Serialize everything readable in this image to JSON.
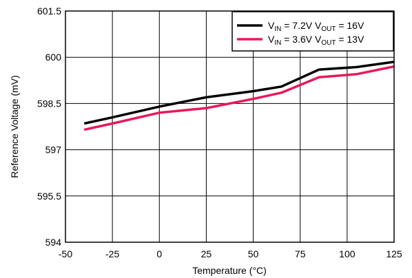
{
  "chart_data": {
    "type": "line",
    "title": "",
    "xlabel": "Temperature (°C)",
    "ylabel": "Reference Voltage (mV)",
    "xlim": [
      -50,
      125
    ],
    "ylim": [
      594,
      601.5
    ],
    "xticks": [
      "-50",
      "-25",
      "0",
      "25",
      "50",
      "75",
      "100",
      "125"
    ],
    "xtick_values": [
      -50,
      -25,
      0,
      25,
      50,
      75,
      100,
      125
    ],
    "yticks": [
      "594",
      "595.5",
      "597",
      "598.5",
      "600",
      "601.5"
    ],
    "ytick_values": [
      594,
      595.5,
      597,
      598.5,
      600,
      601.5
    ],
    "grid": true,
    "legend_position": "top-right",
    "series": [
      {
        "name": "VIN = 7.2V VOUT = 16V",
        "legend": {
          "a": "V",
          "a_sub": "IN",
          "b": " = 7.2V V",
          "b_sub": "OUT",
          "c": " = 16V"
        },
        "color": "#000000",
        "x": [
          -40,
          -25,
          0,
          25,
          50,
          65,
          85,
          105,
          125
        ],
        "y": [
          597.85,
          598.05,
          598.4,
          598.7,
          598.9,
          599.05,
          599.6,
          599.68,
          599.85
        ]
      },
      {
        "name": "VIN = 3.6V VOUT = 13V",
        "legend": {
          "a": "V",
          "a_sub": "IN",
          "b": " = 3.6V V",
          "b_sub": "OUT",
          "c": " = 13V"
        },
        "color": "#e8185a",
        "x": [
          -40,
          -25,
          0,
          25,
          50,
          65,
          85,
          105,
          125
        ],
        "y": [
          597.65,
          597.85,
          598.2,
          598.35,
          598.65,
          598.85,
          599.35,
          599.45,
          599.7
        ]
      }
    ]
  }
}
